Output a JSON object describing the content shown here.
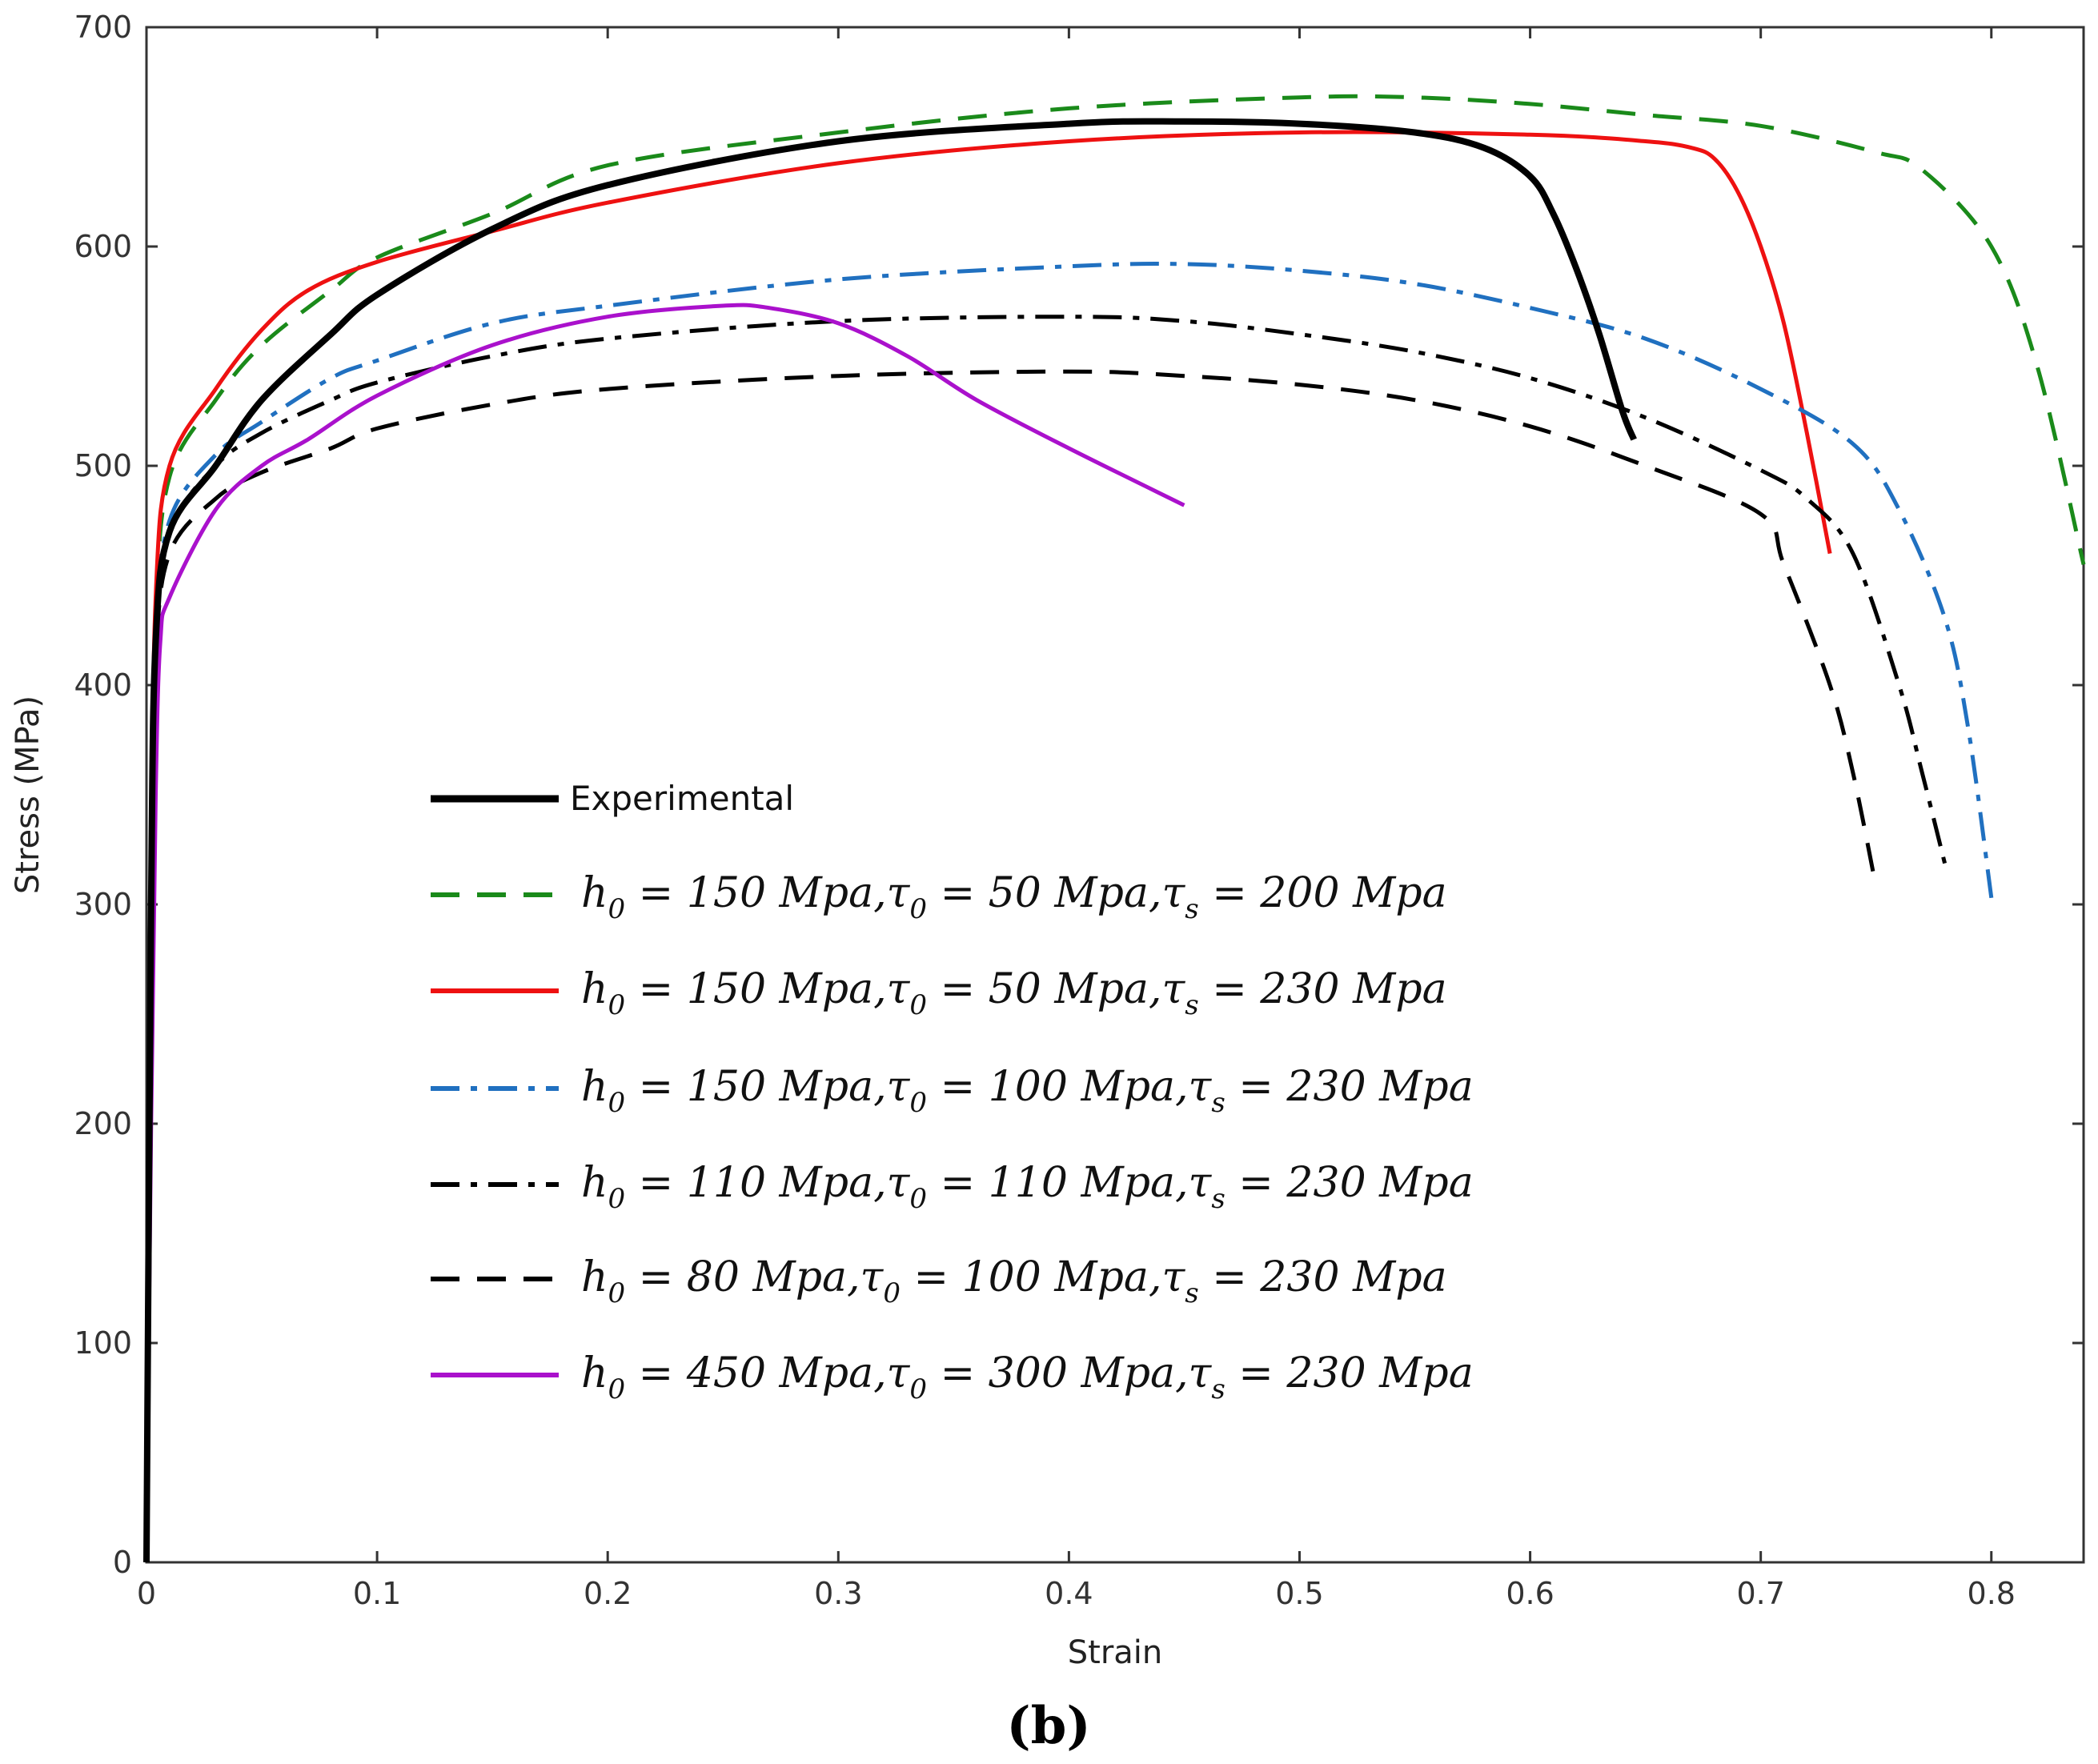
{
  "chart_data": {
    "type": "line",
    "title": "",
    "xlabel": "Strain",
    "ylabel": "Stress (MPa)",
    "xlim": [
      0,
      0.84
    ],
    "ylim": [
      0,
      700
    ],
    "xticks": [
      0,
      0.1,
      0.2,
      0.3,
      0.4,
      0.5,
      0.6,
      0.7,
      0.8
    ],
    "xtick_labels": [
      "0",
      "0.1",
      "0.2",
      "0.3",
      "0.4",
      "0.5",
      "0.6",
      "0.7",
      "0.8"
    ],
    "yticks": [
      0,
      100,
      200,
      300,
      400,
      500,
      600,
      700
    ],
    "ytick_labels": [
      "0",
      "100",
      "200",
      "300",
      "400",
      "500",
      "600",
      "700"
    ],
    "grid": false,
    "legend_position": "center-left",
    "caption": "(b)",
    "series": [
      {
        "name": "Experimental",
        "color": "#000000",
        "style": "solid",
        "points": [
          [
            0,
            0
          ],
          [
            0.002,
            300
          ],
          [
            0.004,
            420
          ],
          [
            0.01,
            470
          ],
          [
            0.03,
            500
          ],
          [
            0.05,
            530
          ],
          [
            0.08,
            560
          ],
          [
            0.1,
            578
          ],
          [
            0.15,
            608
          ],
          [
            0.2,
            628
          ],
          [
            0.3,
            648
          ],
          [
            0.4,
            656
          ],
          [
            0.45,
            657
          ],
          [
            0.5,
            656
          ],
          [
            0.55,
            652
          ],
          [
            0.58,
            645
          ],
          [
            0.6,
            632
          ],
          [
            0.61,
            615
          ],
          [
            0.62,
            590
          ],
          [
            0.63,
            560
          ],
          [
            0.64,
            525
          ],
          [
            0.645,
            512
          ]
        ]
      },
      {
        "name": "h0 = 150 Mpa, τ0 = 50 Mpa, τs = 200 Mpa",
        "color": "#1a8a1a",
        "style": "dashed",
        "points": [
          [
            0,
            0
          ],
          [
            0.002,
            300
          ],
          [
            0.004,
            430
          ],
          [
            0.01,
            495
          ],
          [
            0.03,
            530
          ],
          [
            0.05,
            555
          ],
          [
            0.08,
            580
          ],
          [
            0.1,
            595
          ],
          [
            0.15,
            615
          ],
          [
            0.2,
            637
          ],
          [
            0.3,
            652
          ],
          [
            0.4,
            663
          ],
          [
            0.5,
            668
          ],
          [
            0.55,
            668
          ],
          [
            0.6,
            665
          ],
          [
            0.65,
            660
          ],
          [
            0.7,
            655
          ],
          [
            0.75,
            643
          ],
          [
            0.77,
            635
          ],
          [
            0.8,
            600
          ],
          [
            0.82,
            545
          ],
          [
            0.84,
            455
          ]
        ]
      },
      {
        "name": "h0 = 150 Mpa, τ0 = 50 Mpa, τs = 230 Mpa",
        "color": "#ee1111",
        "style": "solid",
        "points": [
          [
            0,
            0
          ],
          [
            0.002,
            300
          ],
          [
            0.004,
            440
          ],
          [
            0.01,
            500
          ],
          [
            0.03,
            535
          ],
          [
            0.05,
            562
          ],
          [
            0.07,
            580
          ],
          [
            0.1,
            593
          ],
          [
            0.15,
            607
          ],
          [
            0.2,
            620
          ],
          [
            0.3,
            638
          ],
          [
            0.4,
            648
          ],
          [
            0.5,
            652
          ],
          [
            0.6,
            651
          ],
          [
            0.65,
            648
          ],
          [
            0.67,
            645
          ],
          [
            0.68,
            640
          ],
          [
            0.69,
            625
          ],
          [
            0.7,
            600
          ],
          [
            0.71,
            565
          ],
          [
            0.72,
            515
          ],
          [
            0.73,
            460
          ]
        ]
      },
      {
        "name": "h0 = 150 Mpa, τ0 = 100 Mpa, τs = 230 Mpa",
        "color": "#2070c0",
        "style": "dashdot",
        "points": [
          [
            0,
            0
          ],
          [
            0.002,
            300
          ],
          [
            0.004,
            420
          ],
          [
            0.01,
            475
          ],
          [
            0.03,
            505
          ],
          [
            0.05,
            520
          ],
          [
            0.08,
            540
          ],
          [
            0.1,
            548
          ],
          [
            0.15,
            565
          ],
          [
            0.2,
            573
          ],
          [
            0.3,
            585
          ],
          [
            0.4,
            591
          ],
          [
            0.45,
            592
          ],
          [
            0.5,
            589
          ],
          [
            0.55,
            583
          ],
          [
            0.6,
            572
          ],
          [
            0.65,
            558
          ],
          [
            0.7,
            535
          ],
          [
            0.74,
            510
          ],
          [
            0.76,
            480
          ],
          [
            0.78,
            430
          ],
          [
            0.79,
            380
          ],
          [
            0.8,
            303
          ]
        ]
      },
      {
        "name": "h0 = 110 Mpa, τ0 = 110 Mpa, τs = 230 Mpa",
        "color": "#000000",
        "style": "dashdot",
        "points": [
          [
            0,
            0
          ],
          [
            0.002,
            300
          ],
          [
            0.004,
            420
          ],
          [
            0.01,
            470
          ],
          [
            0.03,
            500
          ],
          [
            0.05,
            515
          ],
          [
            0.08,
            530
          ],
          [
            0.1,
            538
          ],
          [
            0.15,
            550
          ],
          [
            0.2,
            558
          ],
          [
            0.3,
            566
          ],
          [
            0.4,
            568
          ],
          [
            0.45,
            566
          ],
          [
            0.5,
            560
          ],
          [
            0.55,
            552
          ],
          [
            0.6,
            540
          ],
          [
            0.65,
            522
          ],
          [
            0.7,
            498
          ],
          [
            0.72,
            485
          ],
          [
            0.74,
            460
          ],
          [
            0.76,
            400
          ],
          [
            0.77,
            360
          ],
          [
            0.78,
            318
          ]
        ]
      },
      {
        "name": "h0 =  80 Mpa, τ0 = 100 Mpa, τs = 230 Mpa",
        "color": "#000000",
        "style": "dashed",
        "points": [
          [
            0,
            0
          ],
          [
            0.002,
            300
          ],
          [
            0.004,
            410
          ],
          [
            0.01,
            460
          ],
          [
            0.03,
            485
          ],
          [
            0.05,
            497
          ],
          [
            0.08,
            508
          ],
          [
            0.1,
            517
          ],
          [
            0.15,
            528
          ],
          [
            0.2,
            535
          ],
          [
            0.3,
            541
          ],
          [
            0.4,
            543
          ],
          [
            0.45,
            541
          ],
          [
            0.5,
            537
          ],
          [
            0.55,
            530
          ],
          [
            0.6,
            518
          ],
          [
            0.65,
            500
          ],
          [
            0.7,
            478
          ],
          [
            0.71,
            455
          ],
          [
            0.73,
            400
          ],
          [
            0.74,
            360
          ],
          [
            0.75,
            308
          ]
        ]
      },
      {
        "name": "h0 = 450 Mpa, τ0 = 300 Mpa, τs = 230 Mpa",
        "color": "#aa11cc",
        "style": "solid",
        "points": [
          [
            0,
            0
          ],
          [
            0.002,
            200
          ],
          [
            0.004,
            350
          ],
          [
            0.006,
            420
          ],
          [
            0.01,
            440
          ],
          [
            0.03,
            480
          ],
          [
            0.05,
            500
          ],
          [
            0.07,
            512
          ],
          [
            0.1,
            532
          ],
          [
            0.15,
            555
          ],
          [
            0.2,
            568
          ],
          [
            0.25,
            573
          ],
          [
            0.27,
            572
          ],
          [
            0.3,
            565
          ],
          [
            0.33,
            550
          ],
          [
            0.36,
            530
          ],
          [
            0.4,
            508
          ],
          [
            0.45,
            482
          ]
        ]
      }
    ]
  },
  "legend": {
    "entries": [
      {
        "text": "Experimental"
      },
      {
        "h": "h",
        "h_sub": "0",
        "h_val": " = 150 Mpa,",
        "t": "τ",
        "t_sub": "0",
        "t_val": " = 50 Mpa,",
        "s_sub": "s",
        "s_val": " = 200 Mpa"
      },
      {
        "h": "h",
        "h_sub": "0",
        "h_val": " = 150 Mpa,",
        "t": "τ",
        "t_sub": "0",
        "t_val": " = 50 Mpa,",
        "s_sub": "s",
        "s_val": " = 230 Mpa"
      },
      {
        "h": "h",
        "h_sub": "0",
        "h_val": " = 150 Mpa,",
        "t": "τ",
        "t_sub": "0",
        "t_val": " = 100 Mpa,",
        "s_sub": "s",
        "s_val": " = 230 Mpa"
      },
      {
        "h": "h",
        "h_sub": "0",
        "h_val": " = 110 Mpa,",
        "t": "τ",
        "t_sub": "0",
        "t_val": " = 110 Mpa,",
        "s_sub": "s",
        "s_val": " = 230 Mpa"
      },
      {
        "h": "h",
        "h_sub": "0",
        "h_val": " =  80 Mpa,",
        "t": "τ",
        "t_sub": "0",
        "t_val": " = 100 Mpa,",
        "s_sub": "s",
        "s_val": " = 230 Mpa"
      },
      {
        "h": "h",
        "h_sub": "0",
        "h_val": " = 450 Mpa,",
        "t": "τ",
        "t_sub": "0",
        "t_val": " = 300 Mpa,",
        "s_sub": "s",
        "s_val": " = 230 Mpa"
      }
    ]
  }
}
